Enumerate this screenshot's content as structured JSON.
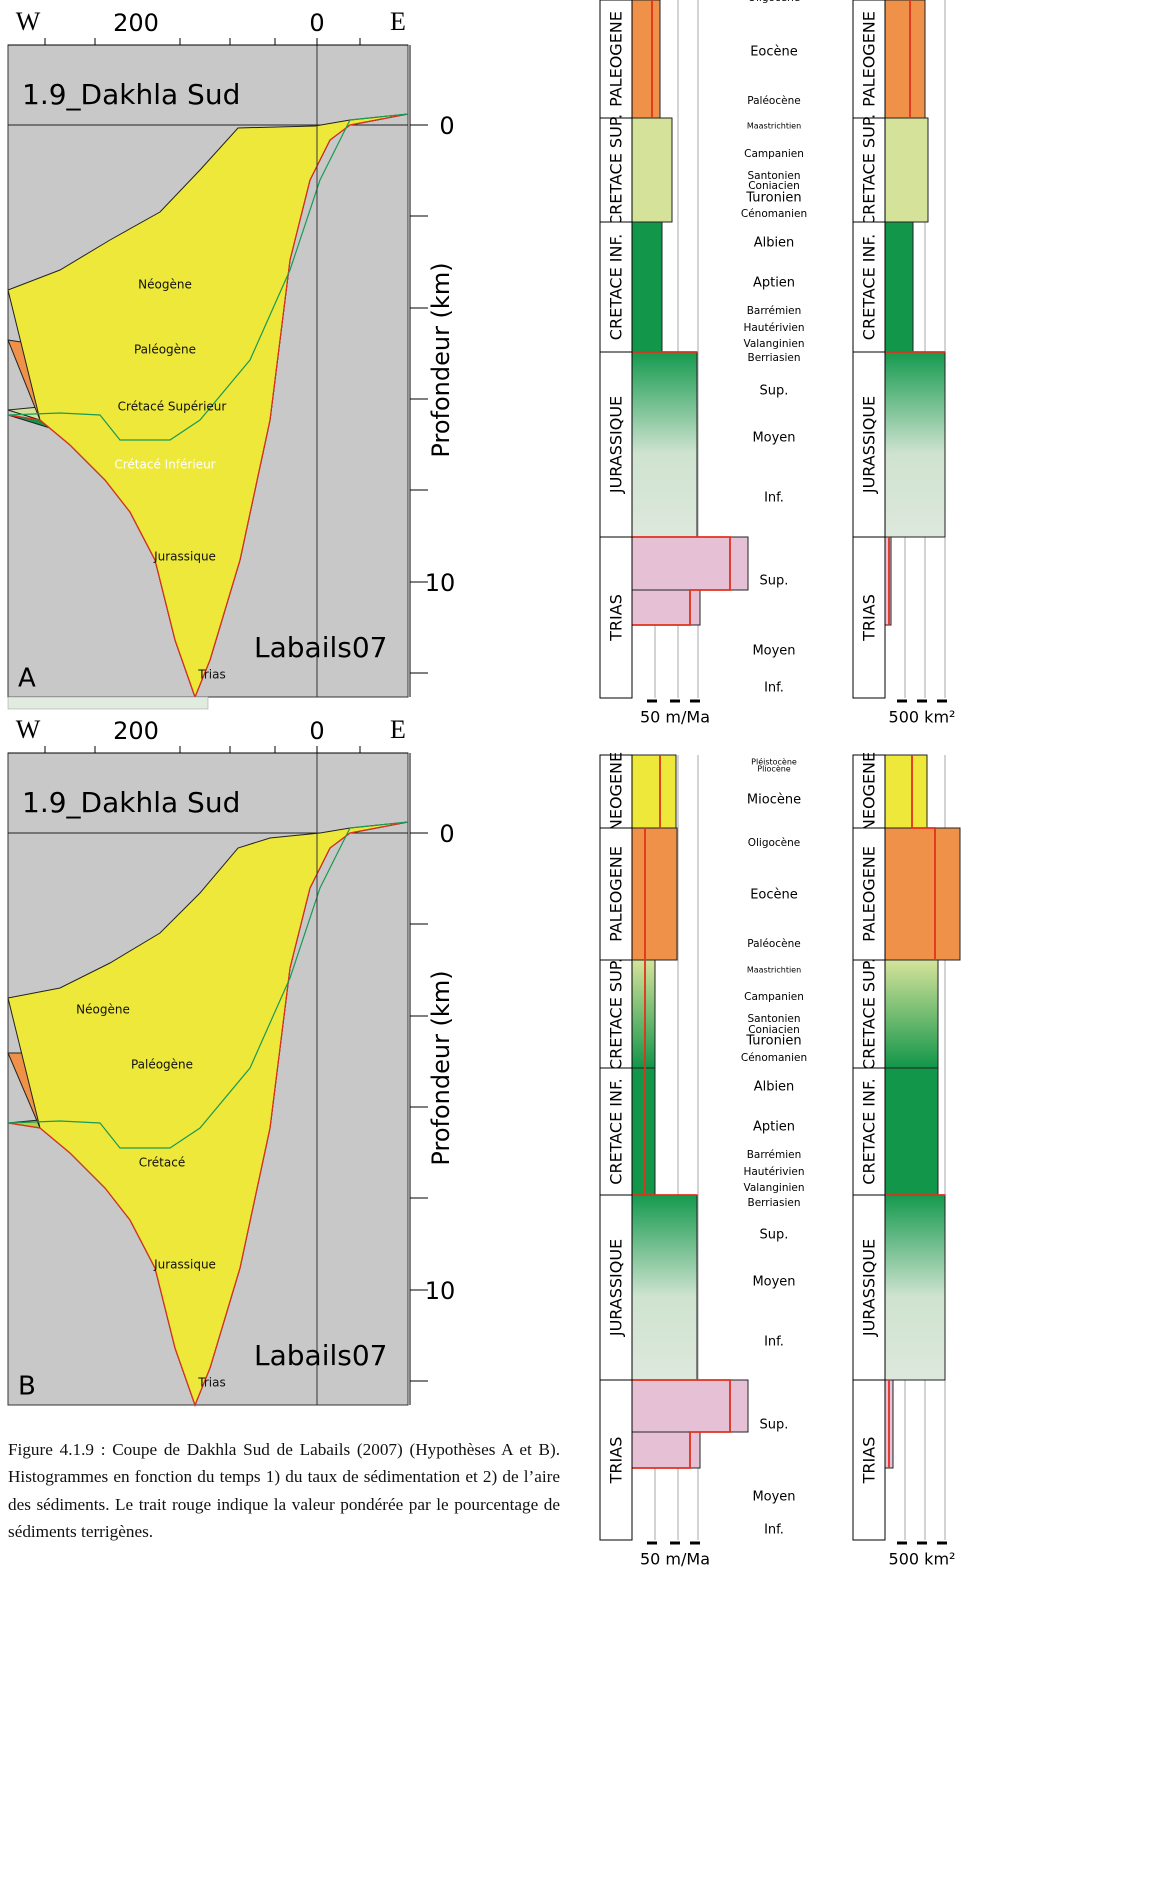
{
  "sections": [
    {
      "label": "A",
      "title": "1.9_Dakhla Sud",
      "source": "Labails07",
      "axis_top": [
        "W",
        "200",
        "0",
        "E"
      ],
      "depth_label": "Profondeur (km)",
      "depth_ticks": [
        "0",
        "10"
      ],
      "layers": [
        "Néogène",
        "Paléogène",
        "Crétacé Supérieur",
        "Crétacé Inférieur",
        "Jurassique",
        "Trias"
      ]
    },
    {
      "label": "B",
      "title": "1.9_Dakhla Sud",
      "source": "Labails07",
      "axis_top": [
        "W",
        "200",
        "0",
        "E"
      ],
      "depth_label": "Profondeur (km)",
      "depth_ticks": [
        "0",
        "10"
      ],
      "layers": [
        "Néogène",
        "Paléogène",
        "Crétacé",
        "Jurassique",
        "Trias"
      ]
    }
  ],
  "histograms": [
    {
      "periods": [
        "PALEOGENE",
        "CRETACE SUP.",
        "CRETACE INF.",
        "JURASSIQUE",
        "TRIAS"
      ],
      "stages": [
        "Oligocène",
        "Eocène",
        "Paléocène",
        "Maastrichtien",
        "Campanien",
        "Santonien",
        "Coniacien",
        "Turonien",
        "Cénomanien",
        "Albien",
        "Aptien",
        "Barrémien",
        "Hautérivien",
        "Valanginien",
        "Berriasien",
        "Sup.",
        "Moyen",
        "Inf.",
        "Sup.",
        "Moyen",
        "Inf."
      ],
      "scales": [
        "50 m/Ma",
        "500 km²"
      ]
    },
    {
      "periods": [
        "NEOGENE",
        "PALEOGENE",
        "CRETACE SUP.",
        "CRETACE INF.",
        "JURASSIQUE",
        "TRIAS"
      ],
      "stages": [
        "Pléistocène",
        "Pliocène",
        "Miocène",
        "Oligocène",
        "Eocène",
        "Paléocène",
        "Maastrichtien",
        "Campanien",
        "Santonien",
        "Coniacien",
        "Turonien",
        "Cénomanien",
        "Albien",
        "Aptien",
        "Barrémien",
        "Hautérivien",
        "Valanginien",
        "Berriasien",
        "Sup.",
        "Moyen",
        "Inf.",
        "Sup.",
        "Moyen",
        "Inf."
      ],
      "scales": [
        "50 m/Ma",
        "500 km²"
      ]
    }
  ],
  "caption": "Figure 4.1.9 : Coupe de Dakhla Sud de Labails (2007) (Hypothèses A et B). Histogrammes en fonction du temps 1) du taux de sédimentation et 2) de l’aire des sédiments. Le trait rouge indique la valeur pondérée par le pourcentage de sédiments terrigènes."
}
